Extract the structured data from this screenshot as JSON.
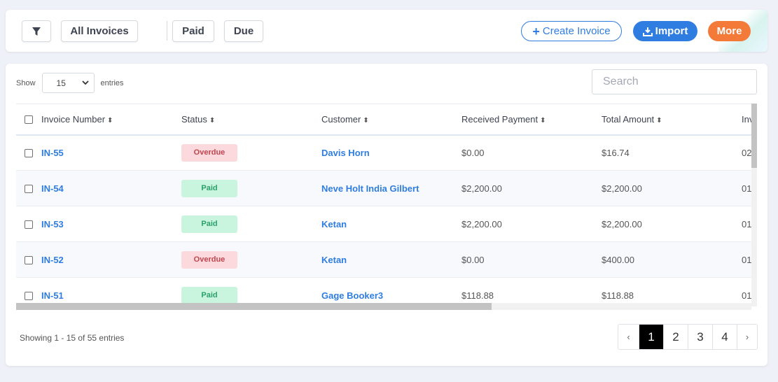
{
  "toolbar": {
    "filter_icon": "filter-icon",
    "all_invoices": "All Invoices",
    "paid": "Paid",
    "due": "Due",
    "create_invoice": "Create Invoice",
    "create_icon": "+",
    "import": "Import",
    "import_icon": "download-icon",
    "more": "More"
  },
  "table_controls": {
    "show_label": "Show",
    "entries_value": "15",
    "entries_label": "entries",
    "search_placeholder": "Search"
  },
  "columns": [
    "Invoice Number",
    "Status",
    "Customer",
    "Received Payment",
    "Total Amount",
    "Inv"
  ],
  "rows": [
    {
      "invoice": "IN-55",
      "status": "Overdue",
      "customer": "Davis Horn",
      "received": "$0.00",
      "total": "$16.74",
      "extra": "02"
    },
    {
      "invoice": "IN-54",
      "status": "Paid",
      "customer": "Neve Holt India Gilbert",
      "received": "$2,200.00",
      "total": "$2,200.00",
      "extra": "01"
    },
    {
      "invoice": "IN-53",
      "status": "Paid",
      "customer": "Ketan",
      "received": "$2,200.00",
      "total": "$2,200.00",
      "extra": "01"
    },
    {
      "invoice": "IN-52",
      "status": "Overdue",
      "customer": "Ketan",
      "received": "$0.00",
      "total": "$400.00",
      "extra": "01"
    },
    {
      "invoice": "IN-51",
      "status": "Paid",
      "customer": "Gage Booker3",
      "received": "$118.88",
      "total": "$118.88",
      "extra": "01"
    }
  ],
  "footer": {
    "info": "Showing 1 - 15 of 55 entries",
    "prev": "‹",
    "pages": [
      "1",
      "2",
      "3",
      "4"
    ],
    "next": "›",
    "active_page": "1"
  },
  "colors": {
    "primary": "#2f7de1",
    "orange": "#f47a3a",
    "overdue_bg": "#fbd9dd",
    "overdue_text": "#c0464f",
    "paid_bg": "#c9f5df",
    "paid_text": "#2aa06a"
  }
}
